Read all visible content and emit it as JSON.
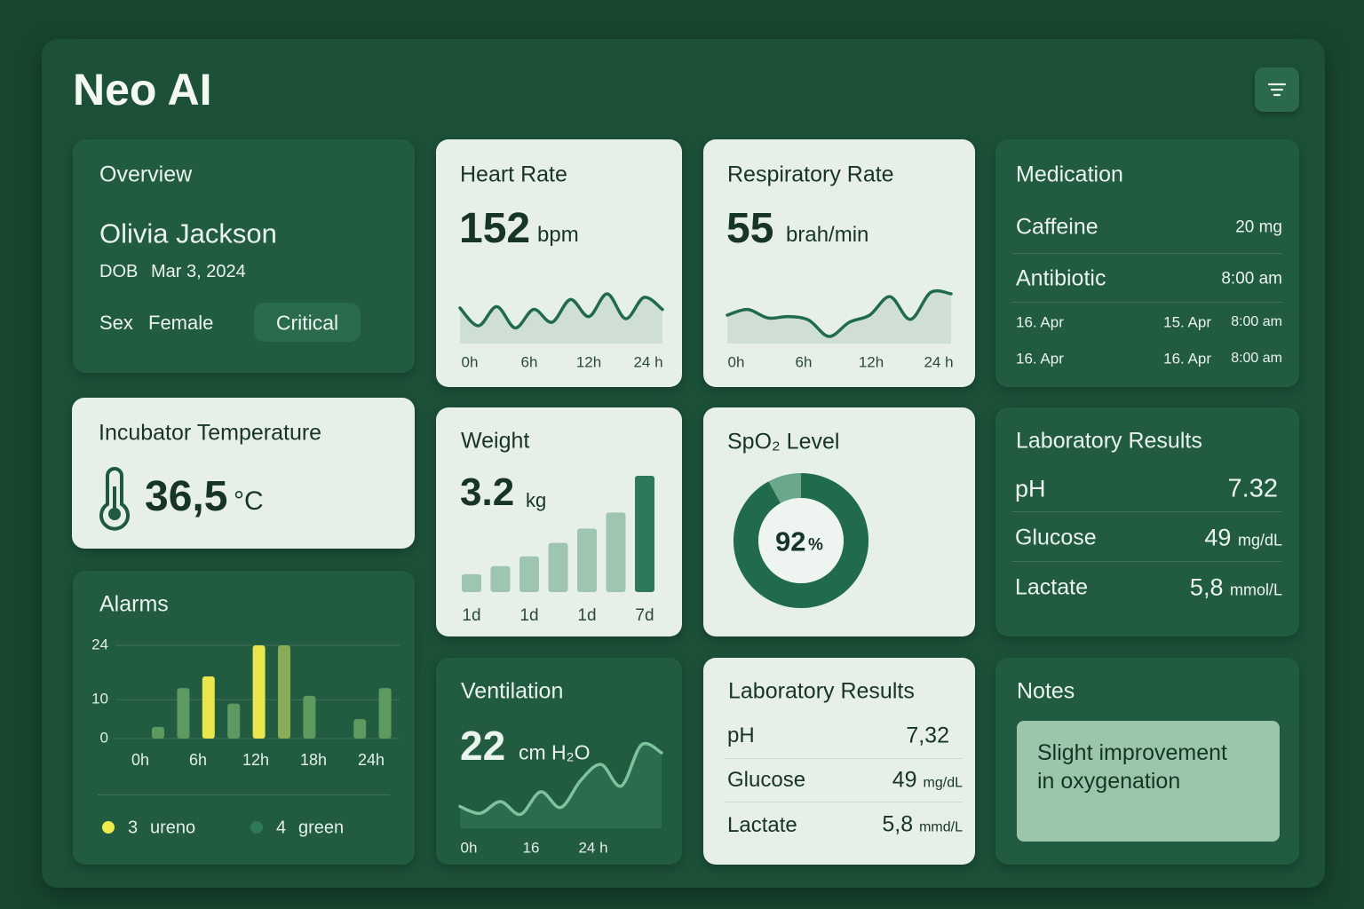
{
  "header": {
    "title": "Neo AI"
  },
  "overview": {
    "title": "Overview",
    "name": "Olivia Jackson",
    "dob_label": "DOB",
    "dob": "Mar 3, 2024",
    "sex_label": "Sex",
    "sex": "Female",
    "status": "Critical"
  },
  "heart_rate": {
    "title": "Heart Rate",
    "value": 152,
    "unit": "bpm",
    "chart": {
      "type": "line",
      "values": [
        50,
        25,
        52,
        22,
        48,
        30,
        62,
        38,
        70,
        35,
        65,
        48
      ],
      "ylim": [
        0,
        100
      ],
      "x_labels": [
        "0h",
        "6h",
        "12h",
        "24 h"
      ]
    }
  },
  "respiratory_rate": {
    "title": "Respiratory Rate",
    "value": 55,
    "unit": "brah/min",
    "chart": {
      "type": "line",
      "values": [
        40,
        48,
        36,
        38,
        33,
        10,
        30,
        40,
        66,
        34,
        72,
        70
      ],
      "ylim": [
        0,
        100
      ],
      "x_labels": [
        "0h",
        "6h",
        "12h",
        "24 h"
      ]
    }
  },
  "medication": {
    "title": "Medication",
    "items": [
      {
        "name": "Caffeine",
        "detail": "20 mg"
      },
      {
        "name": "Antibiotic",
        "detail": "8:00 am"
      }
    ],
    "schedule": [
      [
        "16. Apr",
        "15. Apr",
        "8:00 am"
      ],
      [
        "16. Apr",
        "16. Apr",
        "8:00 am"
      ]
    ]
  },
  "incubator": {
    "title": "Incubator Temperature",
    "value": "36,5",
    "unit": "°C"
  },
  "weight": {
    "title": "Weight",
    "value": 3.2,
    "unit": "kg",
    "chart": {
      "type": "bar",
      "values": [
        2,
        2.9,
        4,
        5.5,
        7.1,
        8.9,
        13
      ],
      "ylim": [
        0,
        13
      ],
      "categories": [
        "1d",
        null,
        "1d",
        null,
        "1d",
        null,
        "7d"
      ],
      "colors": [
        "#9dc5af",
        "#9dc5af",
        "#9dc5af",
        "#9dc5af",
        "#9dc5af",
        "#9dc5af",
        "#2d7a5a"
      ]
    }
  },
  "spo2": {
    "title": "SpO₂ Level",
    "value": 92,
    "unit": "%",
    "ylim": [
      0,
      100
    ],
    "color": "#1f6b4c",
    "track_color": "#6aa68a"
  },
  "lab_results": {
    "title": "Laboratory Results",
    "rows": [
      {
        "name": "pH",
        "value": 7.32
      },
      {
        "name": "Glucose",
        "value": 49,
        "unit": "mg/dL"
      },
      {
        "name": "Lactate",
        "value": "5,8",
        "unit": "mmol/L"
      }
    ]
  },
  "alarms": {
    "title": "Alarms",
    "chart": {
      "type": "bar",
      "values": [
        3,
        13,
        16,
        9,
        24,
        24,
        11,
        null,
        5,
        13
      ],
      "ylim": [
        0,
        24
      ],
      "yticks": [
        0,
        10,
        24
      ],
      "colors": [
        "#5d9a5f",
        "#5d9a5f",
        "#e9e64b",
        "#5d9a5f",
        "#e9e64b",
        "#8aab55",
        "#5d9a5f",
        null,
        "#5d9a5f",
        "#5d9a5f"
      ],
      "x_labels": [
        "0h",
        "6h",
        "12h",
        "18h",
        "24h"
      ],
      "grid": true
    },
    "legend": [
      {
        "count": 3,
        "label": "ureno",
        "color": "#f0ea4c"
      },
      {
        "count": 4,
        "label": "green",
        "color": "#2e7a55"
      }
    ]
  },
  "ventilation": {
    "title": "Ventilation",
    "value": 22,
    "unit": "cm H₂O",
    "chart": {
      "type": "line",
      "values": [
        25,
        18,
        30,
        17,
        40,
        24,
        52,
        68,
        46,
        88,
        80
      ],
      "ylim": [
        0,
        100
      ],
      "x_labels": [
        "0h",
        "16",
        "24 h"
      ]
    }
  },
  "lab_results_2": {
    "title": "Laboratory Results",
    "rows": [
      {
        "name": "pH",
        "value": "7,32"
      },
      {
        "name": "Glucose",
        "value": 49,
        "unit": "mg/dL"
      },
      {
        "name": "Lactate",
        "value": "5,8",
        "unit": "mmd/L"
      }
    ]
  },
  "notes": {
    "title": "Notes",
    "text": "Slight improvement in oxygenation"
  }
}
